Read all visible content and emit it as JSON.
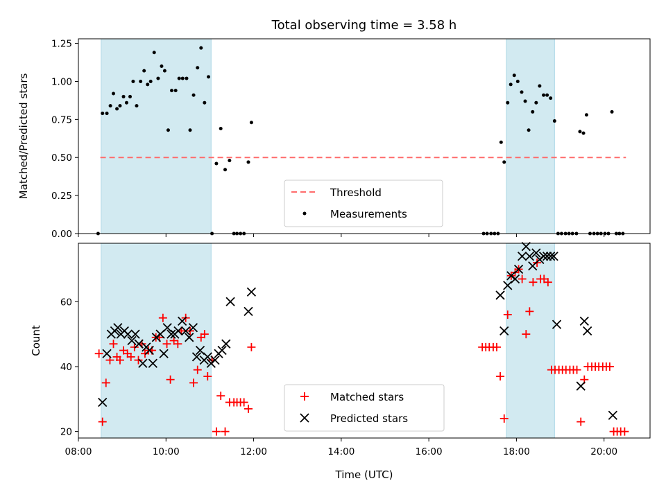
{
  "chart_data": [
    {
      "type": "scatter",
      "title": "Total observing time = 3.58 h",
      "xlabel": "",
      "ylabel": "Matched/Predicted stars",
      "xlim": [
        8.0,
        21.05
      ],
      "ylim": [
        0.0,
        1.28
      ],
      "yticks": [
        "0.00",
        "0.25",
        "0.50",
        "0.75",
        "1.00",
        "1.25"
      ],
      "ytick_values": [
        0.0,
        0.25,
        0.5,
        0.75,
        1.0,
        1.25
      ],
      "observing_windows": [
        [
          8.52,
          11.03
        ],
        [
          17.77,
          18.87
        ]
      ],
      "window_color": "#add8e6",
      "threshold": {
        "name": "Threshold",
        "value": 0.5,
        "x_range": [
          8.5,
          20.5
        ],
        "color": "#ff6b6b"
      },
      "series": [
        {
          "name": "Measurements",
          "color": "#000000",
          "points": [
            [
              8.45,
              0.0
            ],
            [
              8.55,
              0.79
            ],
            [
              8.65,
              0.79
            ],
            [
              8.73,
              0.84
            ],
            [
              8.8,
              0.92
            ],
            [
              8.88,
              0.82
            ],
            [
              8.95,
              0.84
            ],
            [
              9.03,
              0.9
            ],
            [
              9.1,
              0.86
            ],
            [
              9.18,
              0.9
            ],
            [
              9.25,
              1.0
            ],
            [
              9.33,
              0.84
            ],
            [
              9.42,
              1.0
            ],
            [
              9.5,
              1.07
            ],
            [
              9.58,
              0.98
            ],
            [
              9.65,
              1.0
            ],
            [
              9.73,
              1.19
            ],
            [
              9.82,
              1.02
            ],
            [
              9.9,
              1.1
            ],
            [
              9.97,
              1.07
            ],
            [
              10.05,
              0.68
            ],
            [
              10.13,
              0.94
            ],
            [
              10.22,
              0.94
            ],
            [
              10.3,
              1.02
            ],
            [
              10.38,
              1.02
            ],
            [
              10.47,
              1.02
            ],
            [
              10.55,
              0.68
            ],
            [
              10.63,
              0.91
            ],
            [
              10.72,
              1.09
            ],
            [
              10.8,
              1.22
            ],
            [
              10.88,
              0.86
            ],
            [
              10.97,
              1.03
            ],
            [
              11.05,
              0.0
            ],
            [
              11.15,
              0.46
            ],
            [
              11.25,
              0.69
            ],
            [
              11.35,
              0.42
            ],
            [
              11.45,
              0.48
            ],
            [
              11.55,
              0.0
            ],
            [
              11.62,
              0.0
            ],
            [
              11.7,
              0.0
            ],
            [
              11.78,
              0.0
            ],
            [
              11.88,
              0.47
            ],
            [
              11.95,
              0.73
            ],
            [
              17.25,
              0.0
            ],
            [
              17.33,
              0.0
            ],
            [
              17.42,
              0.0
            ],
            [
              17.5,
              0.0
            ],
            [
              17.58,
              0.0
            ],
            [
              17.65,
              0.6
            ],
            [
              17.72,
              0.47
            ],
            [
              17.8,
              0.86
            ],
            [
              17.87,
              0.98
            ],
            [
              17.95,
              1.04
            ],
            [
              18.03,
              1.0
            ],
            [
              18.12,
              0.93
            ],
            [
              18.2,
              0.87
            ],
            [
              18.28,
              0.68
            ],
            [
              18.37,
              0.8
            ],
            [
              18.45,
              0.86
            ],
            [
              18.53,
              0.97
            ],
            [
              18.62,
              0.91
            ],
            [
              18.7,
              0.91
            ],
            [
              18.78,
              0.89
            ],
            [
              18.87,
              0.74
            ],
            [
              18.95,
              0.0
            ],
            [
              19.03,
              0.0
            ],
            [
              19.12,
              0.0
            ],
            [
              19.2,
              0.0
            ],
            [
              19.28,
              0.0
            ],
            [
              19.37,
              0.0
            ],
            [
              19.45,
              0.67
            ],
            [
              19.53,
              0.66
            ],
            [
              19.6,
              0.78
            ],
            [
              19.68,
              0.0
            ],
            [
              19.77,
              0.0
            ],
            [
              19.85,
              0.0
            ],
            [
              19.93,
              0.0
            ],
            [
              20.02,
              0.0
            ],
            [
              20.1,
              0.0
            ],
            [
              20.18,
              0.8
            ],
            [
              20.28,
              0.0
            ],
            [
              20.35,
              0.0
            ],
            [
              20.43,
              0.0
            ]
          ]
        }
      ],
      "legend": {
        "position": "bottom-center",
        "entries": [
          "Threshold",
          "Measurements"
        ]
      }
    },
    {
      "type": "scatter",
      "title": "",
      "xlabel": "Time (UTC)",
      "ylabel": "Count",
      "xlim": [
        8.0,
        21.05
      ],
      "ylim": [
        18.0,
        78.0
      ],
      "yticks": [
        "20",
        "40",
        "60"
      ],
      "ytick_values": [
        20,
        40,
        60
      ],
      "xticks": [
        "08:00",
        "10:00",
        "12:00",
        "14:00",
        "16:00",
        "18:00",
        "20:00"
      ],
      "xtick_values": [
        8,
        10,
        12,
        14,
        16,
        18,
        20
      ],
      "observing_windows": [
        [
          8.52,
          11.03
        ],
        [
          17.77,
          18.87
        ]
      ],
      "window_color": "#add8e6",
      "series": [
        {
          "name": "Matched stars",
          "marker": "+",
          "color": "#ff0000",
          "points": [
            [
              8.47,
              44
            ],
            [
              8.55,
              23
            ],
            [
              8.63,
              35
            ],
            [
              8.72,
              42
            ],
            [
              8.8,
              47
            ],
            [
              8.88,
              43
            ],
            [
              8.95,
              42
            ],
            [
              9.03,
              45
            ],
            [
              9.12,
              44
            ],
            [
              9.2,
              43
            ],
            [
              9.28,
              46
            ],
            [
              9.37,
              42
            ],
            [
              9.45,
              47
            ],
            [
              9.52,
              44
            ],
            [
              9.6,
              45
            ],
            [
              9.68,
              45
            ],
            [
              9.77,
              49
            ],
            [
              9.85,
              49
            ],
            [
              9.93,
              55
            ],
            [
              10.02,
              47
            ],
            [
              10.1,
              36
            ],
            [
              10.18,
              48
            ],
            [
              10.27,
              47
            ],
            [
              10.35,
              51
            ],
            [
              10.45,
              55
            ],
            [
              10.55,
              51
            ],
            [
              10.63,
              35
            ],
            [
              10.72,
              39
            ],
            [
              10.8,
              49
            ],
            [
              10.88,
              50
            ],
            [
              10.95,
              37
            ],
            [
              11.05,
              42
            ],
            [
              11.15,
              20
            ],
            [
              11.25,
              31
            ],
            [
              11.35,
              20
            ],
            [
              11.45,
              29
            ],
            [
              11.55,
              29
            ],
            [
              11.62,
              29
            ],
            [
              11.7,
              29
            ],
            [
              11.78,
              29
            ],
            [
              11.88,
              27
            ],
            [
              11.95,
              46
            ],
            [
              17.22,
              46
            ],
            [
              17.3,
              46
            ],
            [
              17.38,
              46
            ],
            [
              17.47,
              46
            ],
            [
              17.55,
              46
            ],
            [
              17.63,
              37
            ],
            [
              17.72,
              24
            ],
            [
              17.8,
              56
            ],
            [
              17.88,
              68
            ],
            [
              17.97,
              69
            ],
            [
              18.05,
              70
            ],
            [
              18.13,
              67
            ],
            [
              18.22,
              50
            ],
            [
              18.3,
              57
            ],
            [
              18.38,
              66
            ],
            [
              18.47,
              72
            ],
            [
              18.55,
              67
            ],
            [
              18.63,
              67
            ],
            [
              18.72,
              66
            ],
            [
              18.8,
              39
            ],
            [
              18.88,
              39
            ],
            [
              18.97,
              39
            ],
            [
              19.05,
              39
            ],
            [
              19.13,
              39
            ],
            [
              19.22,
              39
            ],
            [
              19.3,
              39
            ],
            [
              19.38,
              39
            ],
            [
              19.47,
              23
            ],
            [
              19.55,
              36
            ],
            [
              19.63,
              40
            ],
            [
              19.72,
              40
            ],
            [
              19.8,
              40
            ],
            [
              19.88,
              40
            ],
            [
              19.97,
              40
            ],
            [
              20.05,
              40
            ],
            [
              20.13,
              40
            ],
            [
              20.22,
              20
            ],
            [
              20.3,
              20
            ],
            [
              20.38,
              20
            ],
            [
              20.47,
              20
            ]
          ]
        },
        {
          "name": "Predicted stars",
          "marker": "x",
          "color": "#000000",
          "points": [
            [
              8.55,
              29
            ],
            [
              8.65,
              44
            ],
            [
              8.75,
              50
            ],
            [
              8.83,
              51
            ],
            [
              8.9,
              52
            ],
            [
              8.97,
              50
            ],
            [
              9.05,
              51
            ],
            [
              9.13,
              50
            ],
            [
              9.22,
              48
            ],
            [
              9.3,
              50
            ],
            [
              9.38,
              47
            ],
            [
              9.47,
              41
            ],
            [
              9.55,
              46
            ],
            [
              9.62,
              45
            ],
            [
              9.7,
              41
            ],
            [
              9.78,
              49
            ],
            [
              9.87,
              50
            ],
            [
              9.95,
              44
            ],
            [
              10.03,
              52
            ],
            [
              10.12,
              50
            ],
            [
              10.2,
              50
            ],
            [
              10.28,
              51
            ],
            [
              10.37,
              54
            ],
            [
              10.45,
              51
            ],
            [
              10.53,
              49
            ],
            [
              10.62,
              52
            ],
            [
              10.7,
              43
            ],
            [
              10.78,
              45
            ],
            [
              10.87,
              42
            ],
            [
              10.95,
              43
            ],
            [
              11.03,
              41
            ],
            [
              11.12,
              42
            ],
            [
              11.2,
              44
            ],
            [
              11.28,
              45
            ],
            [
              11.37,
              47
            ],
            [
              11.47,
              60
            ],
            [
              11.88,
              57
            ],
            [
              11.95,
              63
            ],
            [
              17.63,
              62
            ],
            [
              17.72,
              51
            ],
            [
              17.8,
              65
            ],
            [
              17.88,
              68
            ],
            [
              17.97,
              67
            ],
            [
              18.05,
              70
            ],
            [
              18.13,
              74
            ],
            [
              18.22,
              77
            ],
            [
              18.3,
              74
            ],
            [
              18.37,
              71
            ],
            [
              18.45,
              75
            ],
            [
              18.53,
              73
            ],
            [
              18.62,
              74
            ],
            [
              18.7,
              74
            ],
            [
              18.78,
              74
            ],
            [
              18.85,
              74
            ],
            [
              18.92,
              53
            ],
            [
              19.47,
              34
            ],
            [
              19.55,
              54
            ],
            [
              19.62,
              51
            ],
            [
              20.2,
              25
            ]
          ]
        }
      ],
      "legend": {
        "position": "bottom-center",
        "entries": [
          "Matched stars",
          "Predicted stars"
        ]
      }
    }
  ]
}
